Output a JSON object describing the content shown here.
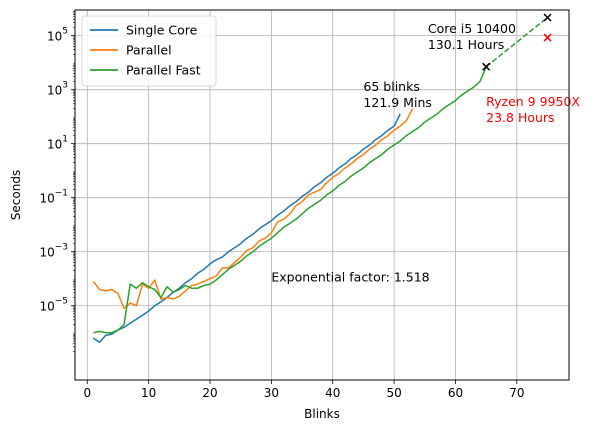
{
  "chart_data": {
    "type": "line",
    "title": "",
    "xlabel": "Blinks",
    "ylabel": "Seconds",
    "xlim": [
      -2,
      78.5
    ],
    "ylim_log10": [
      -7.75,
      5.95
    ],
    "y_scale": "log",
    "grid": true,
    "legend_position": "top-left",
    "x_ticks": [
      0,
      10,
      20,
      30,
      40,
      50,
      60,
      70
    ],
    "y_tick_exponents": [
      -5,
      -3,
      -1,
      1,
      3,
      5
    ],
    "series": [
      {
        "name": "Single Core",
        "color": "#1f77b4",
        "x": [
          1,
          2,
          3,
          4,
          5,
          6,
          7,
          8,
          9,
          10,
          11,
          12,
          13,
          14,
          15,
          16,
          17,
          18,
          19,
          20,
          21,
          22,
          23,
          24,
          25,
          26,
          27,
          28,
          29,
          30,
          31,
          32,
          33,
          34,
          35,
          36,
          37,
          38,
          39,
          40,
          41,
          42,
          43,
          44,
          45,
          46,
          47,
          48,
          49,
          50,
          51
        ],
        "log10_y": [
          -6.2,
          -6.35,
          -6.1,
          -6.05,
          -5.9,
          -5.8,
          -5.65,
          -5.5,
          -5.35,
          -5.2,
          -5.0,
          -4.85,
          -4.7,
          -4.5,
          -4.35,
          -4.15,
          -4.0,
          -3.8,
          -3.65,
          -3.45,
          -3.3,
          -3.2,
          -3.0,
          -2.85,
          -2.7,
          -2.5,
          -2.35,
          -2.15,
          -2.0,
          -1.85,
          -1.65,
          -1.5,
          -1.3,
          -1.15,
          -0.95,
          -0.8,
          -0.6,
          -0.45,
          -0.25,
          -0.1,
          0.1,
          0.25,
          0.45,
          0.6,
          0.8,
          0.95,
          1.15,
          1.3,
          1.5,
          1.65,
          2.1
        ]
      },
      {
        "name": "Parallel",
        "color": "#ff7f0e",
        "x": [
          1,
          2,
          3,
          4,
          5,
          6,
          7,
          8,
          9,
          10,
          11,
          12,
          13,
          14,
          15,
          16,
          17,
          18,
          19,
          20,
          21,
          22,
          23,
          24,
          25,
          26,
          27,
          28,
          29,
          30,
          31,
          32,
          33,
          34,
          35,
          36,
          37,
          38,
          39,
          40,
          41,
          42,
          43,
          44,
          45,
          46,
          47,
          48,
          49,
          50,
          51,
          52,
          53
        ],
        "log10_y": [
          -4.1,
          -4.4,
          -4.45,
          -4.4,
          -4.55,
          -5.1,
          -4.9,
          -5.0,
          -4.2,
          -4.35,
          -4.05,
          -4.75,
          -4.7,
          -4.75,
          -4.65,
          -4.45,
          -4.25,
          -4.2,
          -4.1,
          -4.0,
          -3.9,
          -3.6,
          -3.6,
          -3.4,
          -3.2,
          -2.95,
          -2.85,
          -2.6,
          -2.5,
          -2.3,
          -1.9,
          -1.8,
          -1.6,
          -1.3,
          -1.15,
          -0.9,
          -0.8,
          -0.7,
          -0.45,
          -0.25,
          -0.1,
          0.1,
          0.25,
          0.45,
          0.6,
          0.8,
          0.95,
          1.15,
          1.3,
          1.5,
          1.65,
          1.85,
          2.3
        ]
      },
      {
        "name": "Parallel Fast",
        "color": "#2ca02c",
        "x": [
          1,
          2,
          3,
          4,
          5,
          6,
          7,
          8,
          9,
          10,
          11,
          12,
          13,
          14,
          15,
          16,
          17,
          18,
          19,
          20,
          21,
          22,
          23,
          24,
          25,
          26,
          27,
          28,
          29,
          30,
          31,
          32,
          33,
          34,
          35,
          36,
          37,
          38,
          39,
          40,
          41,
          42,
          43,
          44,
          45,
          46,
          47,
          48,
          49,
          50,
          51,
          52,
          53,
          54,
          55,
          56,
          57,
          58,
          59,
          60,
          61,
          62,
          63,
          64,
          65
        ],
        "log10_y": [
          -6.0,
          -5.95,
          -6.0,
          -6.0,
          -5.9,
          -5.7,
          -4.2,
          -4.35,
          -4.15,
          -4.3,
          -4.4,
          -4.7,
          -4.3,
          -4.5,
          -4.4,
          -4.25,
          -4.35,
          -4.35,
          -4.25,
          -4.2,
          -4.05,
          -3.85,
          -3.65,
          -3.5,
          -3.35,
          -3.15,
          -3.0,
          -2.8,
          -2.65,
          -2.5,
          -2.3,
          -2.1,
          -1.95,
          -1.8,
          -1.6,
          -1.4,
          -1.25,
          -1.1,
          -0.9,
          -0.75,
          -0.55,
          -0.4,
          -0.2,
          -0.05,
          0.1,
          0.3,
          0.45,
          0.6,
          0.8,
          0.95,
          1.1,
          1.3,
          1.45,
          1.6,
          1.8,
          1.95,
          2.1,
          2.3,
          2.45,
          2.6,
          2.8,
          2.95,
          3.1,
          3.3,
          3.85
        ]
      }
    ],
    "projections": [
      {
        "color": "#2ca02c",
        "x": [
          65,
          75
        ],
        "log10_y": [
          3.85,
          5.67
        ]
      }
    ],
    "markers": [
      {
        "x": 65,
        "log10_y": 3.85,
        "color": "#000000"
      },
      {
        "x": 75,
        "log10_y": 5.67,
        "color": "#000000"
      },
      {
        "x": 75,
        "log10_y": 4.93,
        "color": "#ff0000"
      }
    ],
    "annotations": [
      {
        "lines": [
          "Core i5 10400",
          "130.1 Hours"
        ],
        "x": 55.5,
        "log10_y": 5.1,
        "color": "#000000"
      },
      {
        "lines": [
          "65 blinks",
          "121.9 Mins"
        ],
        "x": 45,
        "log10_y": 2.95,
        "color": "#000000"
      },
      {
        "lines": [
          "Ryzen 9 9950X",
          "23.8 Hours"
        ],
        "x": 65,
        "log10_y": 2.4,
        "color": "#ff0000"
      },
      {
        "lines": [
          "Exponential factor: 1.518"
        ],
        "x": 30,
        "log10_y": -4.1,
        "color": "#000000"
      }
    ]
  }
}
